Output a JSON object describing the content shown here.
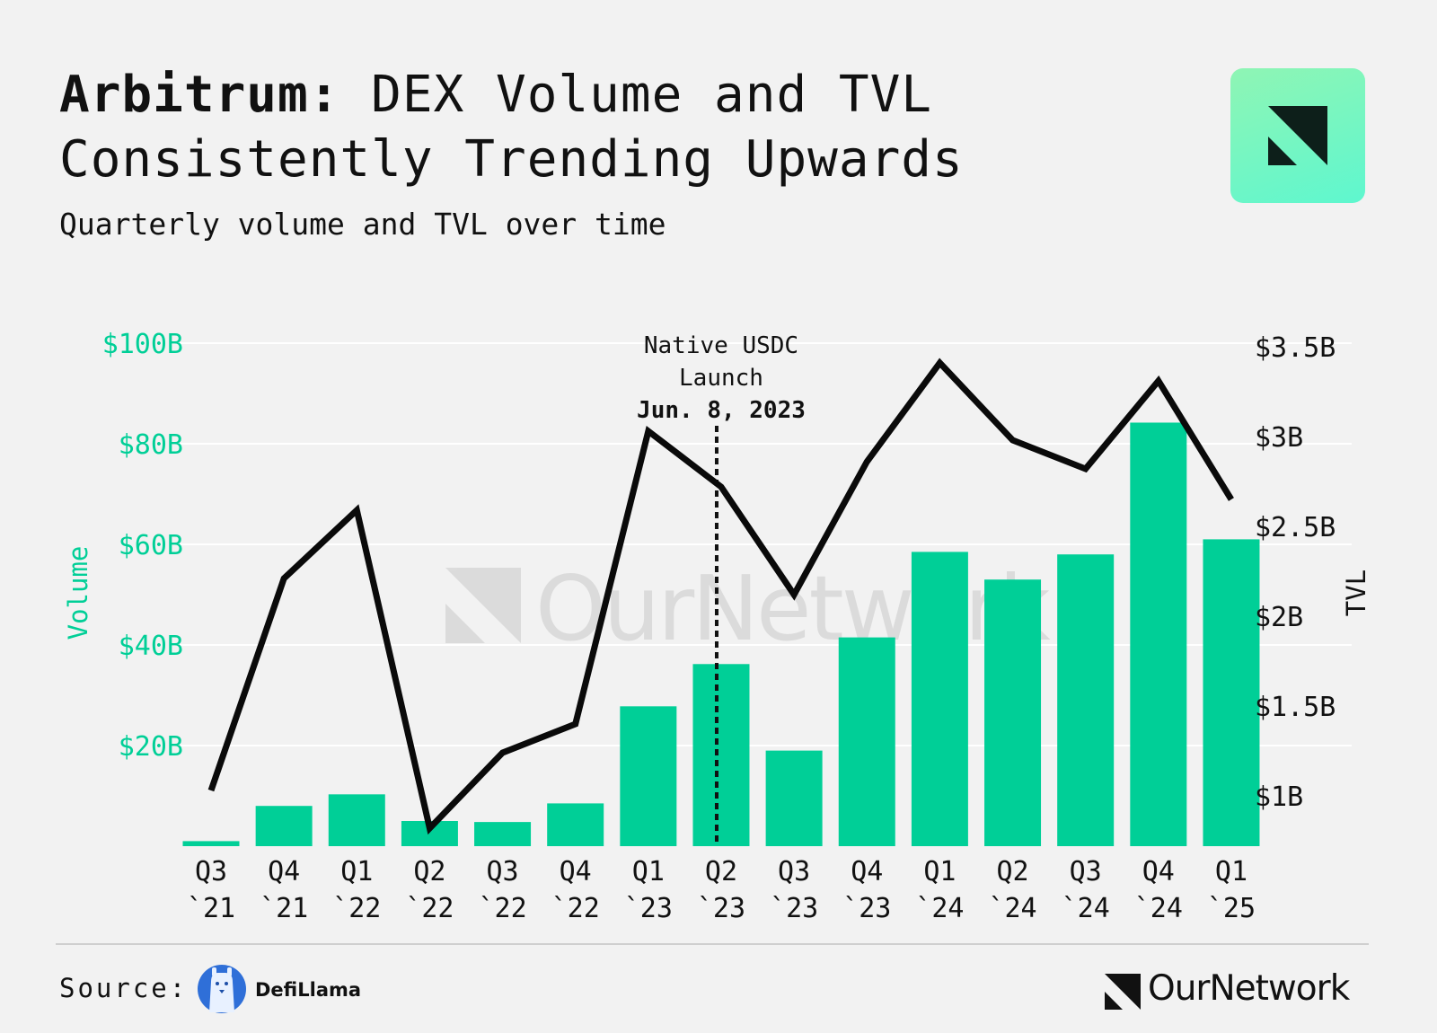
{
  "header": {
    "title_bold": "Arbitrum:",
    "title_rest": "DEX Volume and TVL",
    "title_line2": "Consistently Trending Upwards",
    "subtitle": "Quarterly volume and TVL over time"
  },
  "colors": {
    "bar": "#00cf97",
    "line": "#0a0a0a",
    "volume_axis": "#00cf97",
    "grid": "#ffffff",
    "annotation": "#111111"
  },
  "chart_data": {
    "type": "bar",
    "title": "Arbitrum: DEX Volume and TVL Consistently Trending Upwards",
    "categories": [
      [
        "Q3",
        "`21"
      ],
      [
        "Q4",
        "`21"
      ],
      [
        "Q1",
        "`22"
      ],
      [
        "Q2",
        "`22"
      ],
      [
        "Q3",
        "`22"
      ],
      [
        "Q4",
        "`22"
      ],
      [
        "Q1",
        "`23"
      ],
      [
        "Q2",
        "`23"
      ],
      [
        "Q3",
        "`23"
      ],
      [
        "Q4",
        "`23"
      ],
      [
        "Q1",
        "`24"
      ],
      [
        "Q2",
        "`24"
      ],
      [
        "Q3",
        "`24"
      ],
      [
        "Q4",
        "`24"
      ],
      [
        "Q1",
        "`25"
      ]
    ],
    "series": [
      {
        "name": "Volume",
        "kind": "bar",
        "axis": "left",
        "unit": "USD billions",
        "values": [
          1,
          8,
          10.3,
          5,
          4.8,
          8.5,
          27.8,
          36.2,
          19,
          41.5,
          58.5,
          53,
          58,
          84.2,
          61
        ]
      },
      {
        "name": "TVL",
        "kind": "line",
        "axis": "right",
        "unit": "USD billions",
        "values": [
          1.03,
          2.21,
          2.59,
          0.82,
          1.24,
          1.4,
          3.03,
          2.72,
          2.12,
          2.86,
          3.41,
          2.98,
          2.82,
          3.31,
          2.65
        ]
      }
    ],
    "y_left": {
      "label": "Volume",
      "ylim": [
        0,
        100
      ],
      "ticks": [
        {
          "value": 20,
          "label": "$20B"
        },
        {
          "value": 40,
          "label": "$40B"
        },
        {
          "value": 60,
          "label": "$60B"
        },
        {
          "value": 80,
          "label": "$80B"
        },
        {
          "value": 100,
          "label": "$100B"
        }
      ]
    },
    "y_right": {
      "label": "TVL",
      "ylim": [
        0.72,
        3.52
      ],
      "ticks": [
        {
          "value": 1,
          "label": "$1B"
        },
        {
          "value": 1.5,
          "label": "$1.5B"
        },
        {
          "value": 2,
          "label": "$2B"
        },
        {
          "value": 2.5,
          "label": "$2.5B"
        },
        {
          "value": 3,
          "label": "$3B"
        },
        {
          "value": 3.5,
          "label": "$3.5B"
        }
      ]
    },
    "grid": true,
    "annotation": {
      "category_index": 7,
      "lines": [
        "Native USDC",
        "Launch"
      ],
      "date": "Jun. 8, 2023"
    }
  },
  "watermark": "OurNetwork",
  "footer": {
    "source_label": "Source:",
    "source_name": "DefiLlama",
    "brand": "OurNetwork"
  }
}
